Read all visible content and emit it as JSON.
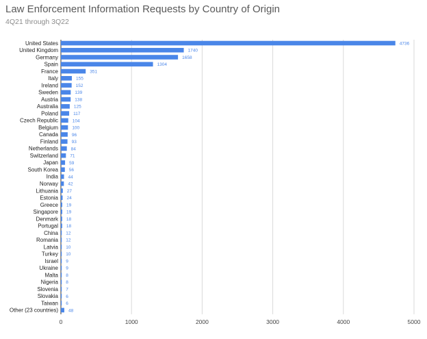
{
  "title": "Law Enforcement Information Requests by Country of Origin",
  "subtitle": "4Q21 through 3Q22",
  "chart_data": {
    "type": "bar",
    "orientation": "horizontal",
    "title": "Law Enforcement Information Requests by Country of Origin",
    "subtitle": "4Q21 through 3Q22",
    "categories": [
      "United States",
      "United Kingdom",
      "Germany",
      "Spain",
      "France",
      "Italy",
      "Ireland",
      "Sweden",
      "Austria",
      "Australia",
      "Poland",
      "Czech Republic",
      "Belgium",
      "Canada",
      "Finland",
      "Netherlands",
      "Switzerland",
      "Japan",
      "South Korea",
      "India",
      "Norway",
      "Lithuania",
      "Estonia",
      "Greece",
      "Singapore",
      "Denmark",
      "Portugal",
      "China",
      "Romania",
      "Latvia",
      "Turkey",
      "Israel",
      "Ukraine",
      "Malta",
      "Nigeria",
      "Slovenia",
      "Slovakia",
      "Taiwan",
      "Other (23 countries)"
    ],
    "values": [
      4736,
      1740,
      1658,
      1304,
      351,
      155,
      152,
      139,
      138,
      125,
      117,
      104,
      100,
      96,
      93,
      84,
      71,
      59,
      56,
      44,
      42,
      27,
      24,
      19,
      19,
      18,
      18,
      12,
      12,
      10,
      10,
      9,
      9,
      8,
      8,
      7,
      6,
      6,
      48
    ],
    "xlim": [
      0,
      5000
    ],
    "x_ticks": [
      "0",
      "1000",
      "2000",
      "3000",
      "4000",
      "5000"
    ],
    "grid": "vertical",
    "bar_color": "#4a86e8",
    "value_label_color": "#4a86e8"
  }
}
